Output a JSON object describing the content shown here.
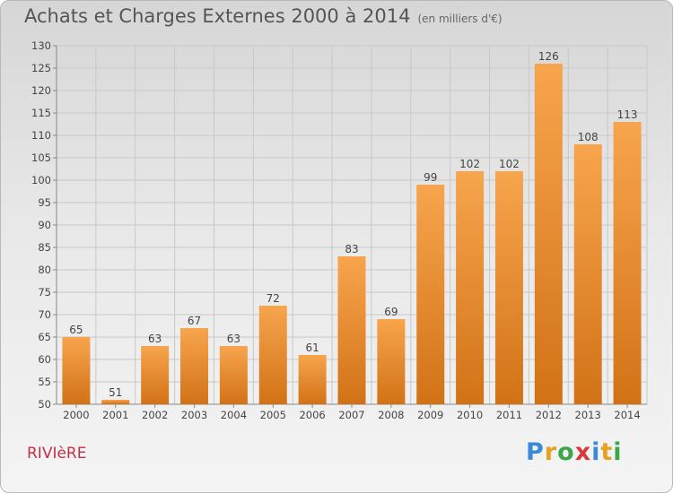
{
  "title": "Achats et Charges Externes 2000 à 2014",
  "subtitle": "(en milliers d'€)",
  "place": "RIVIèRE",
  "logo": {
    "text": "Proxiti",
    "letters": [
      {
        "ch": "P",
        "color": "#3a8ad8"
      },
      {
        "ch": "r",
        "color": "#e8a020"
      },
      {
        "ch": "o",
        "color": "#3aa84a"
      },
      {
        "ch": "x",
        "color": "#d83a3a"
      },
      {
        "ch": "i",
        "color": "#3a8ad8"
      },
      {
        "ch": "t",
        "color": "#e8a020"
      },
      {
        "ch": "i",
        "color": "#3aa84a"
      }
    ]
  },
  "colors": {
    "bar_light": "#f7a54e",
    "bar_dark": "#d27216",
    "grid": "#c8c8c8",
    "title": "#555555",
    "place": "#c0324a"
  },
  "chart_data": {
    "type": "bar",
    "title": "Achats et Charges Externes 2000 à 2014",
    "subtitle": "(en milliers d'€)",
    "categories": [
      "2000",
      "2001",
      "2002",
      "2003",
      "2004",
      "2005",
      "2006",
      "2007",
      "2008",
      "2009",
      "2010",
      "2011",
      "2012",
      "2013",
      "2014"
    ],
    "values": [
      65,
      51,
      63,
      67,
      63,
      72,
      61,
      83,
      69,
      99,
      102,
      102,
      126,
      108,
      113
    ],
    "ylim": [
      50,
      130
    ],
    "yticks": [
      50,
      55,
      60,
      65,
      70,
      75,
      80,
      85,
      90,
      95,
      100,
      105,
      110,
      115,
      120,
      125,
      130
    ],
    "xlabel": "",
    "ylabel": "",
    "grid": true,
    "data_labels": true
  }
}
